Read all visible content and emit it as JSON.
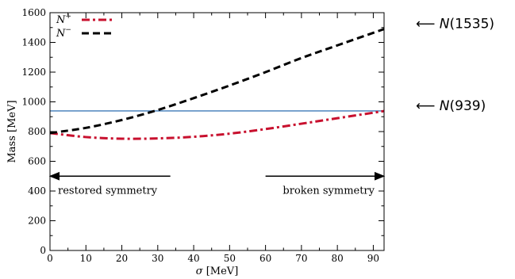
{
  "chart_data": {
    "type": "line",
    "xlabel_symbol": "σ",
    "xlabel_unit": "[MeV]",
    "ylabel": "Mass [MeV]",
    "xlim": [
      0,
      93
    ],
    "ylim": [
      0,
      1600
    ],
    "xticks": [
      0,
      10,
      20,
      30,
      40,
      50,
      60,
      70,
      80,
      90
    ],
    "yticks": [
      0,
      200,
      400,
      600,
      800,
      1000,
      1200,
      1400,
      1600
    ],
    "grid": false,
    "legend_position": "top-left",
    "series": [
      {
        "name_base": "N",
        "name_sup": "+",
        "color": "#c8102e",
        "style": "dash-dot",
        "x": [
          0,
          10,
          20,
          30,
          40,
          50,
          60,
          70,
          80,
          93
        ],
        "y": [
          790,
          763,
          752,
          754,
          765,
          786,
          817,
          853,
          890,
          938
        ]
      },
      {
        "name_base": "N",
        "name_sup": "−",
        "color": "#000000",
        "style": "dashed",
        "x": [
          0,
          10,
          20,
          30,
          40,
          50,
          60,
          70,
          80,
          93
        ],
        "y": [
          790,
          825,
          878,
          945,
          1025,
          1110,
          1200,
          1295,
          1380,
          1490
        ]
      }
    ],
    "hline": {
      "y": 939,
      "color": "#3d7ab8"
    },
    "arrows": [
      {
        "label": "restored symmetry",
        "from_x": 33.5,
        "to_x": 0,
        "y": 500
      },
      {
        "label": "broken symmetry",
        "from_x": 60,
        "to_x": 93,
        "y": 500
      }
    ],
    "annotations": [
      {
        "arrow": "⟵",
        "base": "N",
        "value": "(1535)",
        "y": 1490
      },
      {
        "arrow": "⟵",
        "base": "N",
        "value": "(939)",
        "y": 939
      }
    ]
  }
}
